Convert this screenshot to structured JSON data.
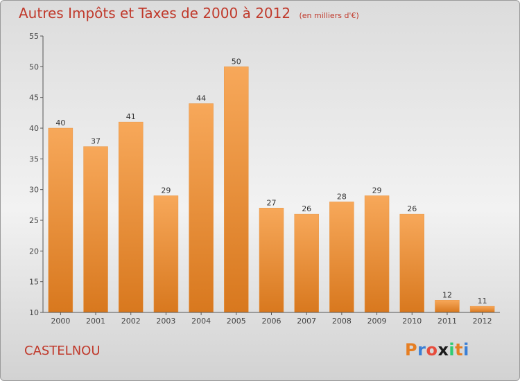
{
  "title": "Autres Impôts et Taxes de 2000 à 2012",
  "unit_label": "(en milliers d'€)",
  "commune": "CASTELNOU",
  "logo": {
    "letters": [
      "P",
      "r",
      "o",
      "x",
      "i",
      "t",
      "i"
    ],
    "colors": [
      "#e67e22",
      "#3a7fd5",
      "#e74c3c",
      "#1a1a1a",
      "#2ecc71",
      "#e67e22",
      "#3a7fd5"
    ]
  },
  "colors": {
    "bar_top": "#f7a85a",
    "bar_bottom": "#d8781e",
    "title": "#c0392b"
  },
  "chart_data": {
    "type": "bar",
    "title": "Autres Impôts et Taxes de 2000 à 2012",
    "subtitle": "(en milliers d'€)",
    "categories": [
      "2000",
      "2001",
      "2002",
      "2003",
      "2004",
      "2005",
      "2006",
      "2007",
      "2008",
      "2009",
      "2010",
      "2011",
      "2012"
    ],
    "values": [
      40,
      37,
      41,
      29,
      44,
      50,
      27,
      26,
      28,
      29,
      26,
      12,
      11
    ],
    "ylim": [
      10,
      55
    ],
    "yticks": [
      10,
      15,
      20,
      25,
      30,
      35,
      40,
      45,
      50,
      55
    ],
    "grid": false,
    "legend": "none"
  }
}
